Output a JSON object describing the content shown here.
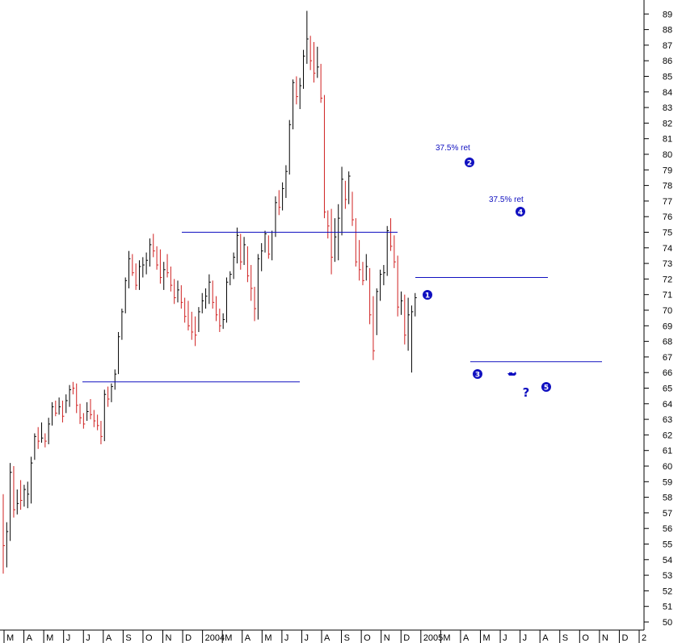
{
  "chart_data": {
    "type": "bar",
    "subtype": "ohlc",
    "title": "",
    "xlabel": "",
    "ylabel": "",
    "ylim": [
      50,
      89
    ],
    "y_ticks": [
      50,
      51,
      52,
      53,
      54,
      55,
      56,
      57,
      58,
      59,
      60,
      61,
      62,
      63,
      64,
      65,
      66,
      67,
      68,
      69,
      70,
      71,
      72,
      73,
      74,
      75,
      76,
      77,
      78,
      79,
      80,
      81,
      82,
      83,
      84,
      85,
      86,
      87,
      88,
      89
    ],
    "x_ticks": [
      "M",
      "A",
      "M",
      "J",
      "J",
      "A",
      "S",
      "O",
      "N",
      "D",
      "2004",
      "M",
      "A",
      "M",
      "J",
      "J",
      "A",
      "S",
      "O",
      "N",
      "D",
      "2005",
      "M",
      "A",
      "M",
      "J",
      "J",
      "A",
      "S",
      "O",
      "N",
      "D",
      "2"
    ],
    "colors": {
      "up": "#000000",
      "down": "#d02020",
      "annotation": "#1010c0",
      "grid": "#000000"
    },
    "bars_weekly": [
      [
        58.2,
        53.1,
        54.9,
        0
      ],
      [
        56.4,
        53.5,
        55.8,
        1
      ],
      [
        60.2,
        55.2,
        59.6,
        1
      ],
      [
        60.0,
        56.7,
        57.2,
        0
      ],
      [
        58.5,
        56.9,
        57.6,
        1
      ],
      [
        59.1,
        57.2,
        57.8,
        0
      ],
      [
        58.8,
        57.4,
        58.5,
        1
      ],
      [
        59.0,
        57.3,
        58.2,
        1
      ],
      [
        60.6,
        57.6,
        60.2,
        1
      ],
      [
        62.1,
        60.4,
        61.9,
        1
      ],
      [
        62.5,
        61.1,
        61.6,
        0
      ],
      [
        62.8,
        61.5,
        61.8,
        1
      ],
      [
        62.1,
        61.2,
        61.6,
        0
      ],
      [
        63.1,
        61.4,
        62.7,
        1
      ],
      [
        64.1,
        62.6,
        63.8,
        1
      ],
      [
        64.2,
        63.2,
        63.4,
        0
      ],
      [
        64.4,
        63.3,
        63.8,
        1
      ],
      [
        64.2,
        62.8,
        63.2,
        0
      ],
      [
        64.6,
        63.4,
        64.2,
        1
      ],
      [
        65.2,
        63.8,
        64.9,
        1
      ],
      [
        65.4,
        64.6,
        65.0,
        0
      ],
      [
        65.3,
        63.4,
        63.9,
        0
      ],
      [
        64.0,
        62.7,
        63.1,
        0
      ],
      [
        63.4,
        62.4,
        62.7,
        0
      ],
      [
        64.1,
        62.9,
        63.5,
        1
      ],
      [
        64.3,
        63.0,
        63.3,
        0
      ],
      [
        63.6,
        62.5,
        62.9,
        0
      ],
      [
        63.3,
        62.3,
        62.6,
        0
      ],
      [
        62.9,
        61.4,
        61.9,
        0
      ],
      [
        64.9,
        61.6,
        64.6,
        1
      ],
      [
        65.1,
        63.8,
        64.3,
        0
      ],
      [
        65.3,
        64.1,
        65.1,
        1
      ],
      [
        66.2,
        64.9,
        65.9,
        1
      ],
      [
        68.6,
        65.9,
        68.3,
        1
      ],
      [
        70.1,
        68.1,
        69.9,
        1
      ],
      [
        72.1,
        69.8,
        71.9,
        1
      ],
      [
        73.8,
        71.4,
        73.3,
        1
      ],
      [
        73.6,
        72.2,
        72.4,
        0
      ],
      [
        73.0,
        71.3,
        71.6,
        0
      ],
      [
        73.2,
        71.3,
        72.8,
        1
      ],
      [
        73.4,
        72.1,
        72.9,
        1
      ],
      [
        73.7,
        72.3,
        73.2,
        1
      ],
      [
        74.6,
        72.8,
        74.2,
        1
      ],
      [
        74.9,
        73.4,
        73.8,
        0
      ],
      [
        74.1,
        72.6,
        72.9,
        0
      ],
      [
        73.9,
        71.7,
        72.1,
        0
      ],
      [
        73.1,
        71.3,
        72.6,
        1
      ],
      [
        73.6,
        72.1,
        72.4,
        0
      ],
      [
        72.8,
        71.2,
        71.6,
        0
      ],
      [
        72.0,
        70.4,
        70.8,
        0
      ],
      [
        71.9,
        70.5,
        71.3,
        1
      ],
      [
        71.6,
        70.1,
        70.5,
        0
      ],
      [
        70.8,
        69.2,
        69.6,
        0
      ],
      [
        70.6,
        68.7,
        69.0,
        0
      ],
      [
        69.9,
        68.1,
        68.6,
        0
      ],
      [
        69.6,
        67.7,
        68.4,
        0
      ],
      [
        70.2,
        68.6,
        69.9,
        1
      ],
      [
        71.1,
        69.8,
        70.6,
        1
      ],
      [
        71.4,
        70.1,
        70.9,
        1
      ],
      [
        72.3,
        70.4,
        71.8,
        1
      ],
      [
        71.9,
        70.1,
        70.5,
        0
      ],
      [
        70.9,
        69.3,
        69.7,
        0
      ],
      [
        70.1,
        68.6,
        69.0,
        0
      ],
      [
        69.8,
        68.8,
        69.4,
        1
      ],
      [
        72.1,
        69.2,
        71.8,
        1
      ],
      [
        72.5,
        71.6,
        72.3,
        1
      ],
      [
        73.7,
        72.0,
        73.4,
        1
      ],
      [
        75.3,
        73.0,
        74.8,
        1
      ],
      [
        74.9,
        72.6,
        73.1,
        0
      ],
      [
        74.7,
        72.9,
        74.2,
        1
      ],
      [
        74.1,
        71.8,
        72.2,
        0
      ],
      [
        72.9,
        70.6,
        71.4,
        0
      ],
      [
        71.5,
        69.3,
        70.1,
        0
      ],
      [
        73.6,
        69.4,
        73.3,
        1
      ],
      [
        74.3,
        72.5,
        73.8,
        1
      ],
      [
        75.1,
        73.7,
        74.9,
        1
      ],
      [
        74.8,
        73.3,
        73.6,
        0
      ],
      [
        75.1,
        73.2,
        75.0,
        1
      ],
      [
        77.3,
        74.7,
        76.9,
        1
      ],
      [
        77.7,
        76.1,
        76.6,
        0
      ],
      [
        78.2,
        76.4,
        77.8,
        1
      ],
      [
        79.3,
        77.2,
        78.9,
        1
      ],
      [
        82.2,
        78.7,
        81.9,
        1
      ],
      [
        84.8,
        81.6,
        84.6,
        1
      ],
      [
        85.0,
        83.2,
        83.7,
        0
      ],
      [
        84.9,
        82.9,
        84.4,
        1
      ],
      [
        86.7,
        84.2,
        86.3,
        1
      ],
      [
        89.2,
        85.8,
        87.4,
        1
      ],
      [
        87.6,
        85.4,
        86.0,
        0
      ],
      [
        87.2,
        84.6,
        85.2,
        0
      ],
      [
        86.9,
        84.9,
        85.6,
        1
      ],
      [
        85.8,
        83.3,
        83.6,
        0
      ],
      [
        83.8,
        75.9,
        76.3,
        0
      ],
      [
        76.4,
        74.6,
        75.4,
        0
      ],
      [
        76.5,
        72.3,
        73.4,
        0
      ],
      [
        75.9,
        73.1,
        74.7,
        1
      ],
      [
        76.8,
        73.2,
        75.9,
        1
      ],
      [
        79.2,
        74.8,
        78.4,
        1
      ],
      [
        78.3,
        76.5,
        77.1,
        0
      ],
      [
        78.9,
        76.8,
        78.6,
        1
      ],
      [
        77.6,
        75.4,
        75.8,
        0
      ],
      [
        75.9,
        72.8,
        73.1,
        0
      ],
      [
        74.5,
        71.9,
        72.6,
        0
      ],
      [
        73.1,
        71.6,
        71.9,
        0
      ],
      [
        73.6,
        71.9,
        72.8,
        1
      ],
      [
        72.7,
        69.1,
        69.7,
        0
      ],
      [
        70.9,
        66.8,
        67.4,
        0
      ],
      [
        71.4,
        68.4,
        71.2,
        1
      ],
      [
        72.6,
        70.6,
        72.3,
        1
      ],
      [
        72.9,
        71.6,
        72.4,
        1
      ],
      [
        75.4,
        72.2,
        75.1,
        1
      ],
      [
        75.9,
        73.8,
        74.1,
        0
      ],
      [
        74.8,
        72.7,
        73.1,
        0
      ],
      [
        73.5,
        69.6,
        70.2,
        0
      ],
      [
        71.2,
        69.7,
        70.6,
        1
      ],
      [
        71.0,
        67.8,
        68.4,
        0
      ],
      [
        70.8,
        67.4,
        69.7,
        1
      ],
      [
        70.3,
        66.0,
        69.9,
        1
      ],
      [
        71.1,
        69.6,
        70.8,
        1
      ]
    ],
    "annotations": {
      "ret1": "37.5% ret",
      "ret2": "37.5% ret",
      "waves": [
        "1",
        "2",
        "3",
        "4",
        "5"
      ],
      "question": "?"
    }
  }
}
